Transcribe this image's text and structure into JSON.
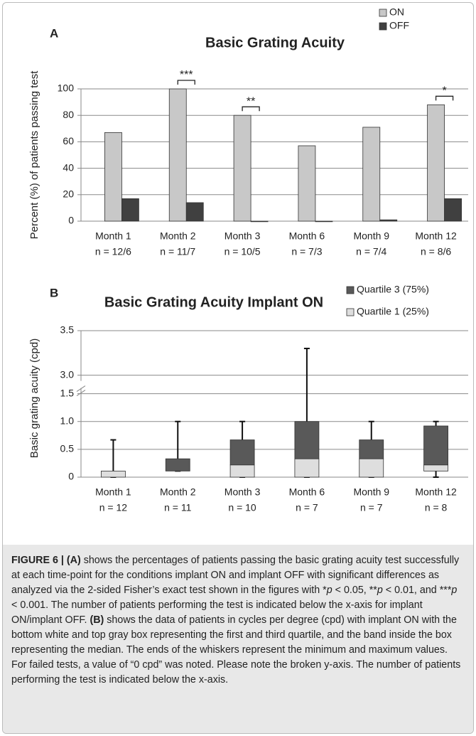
{
  "chart_data": [
    {
      "type": "bar",
      "panel": "A",
      "title": "Basic Grating Acuity",
      "ylabel": "Percent (%) of patients passing test",
      "categories": [
        "Month 1",
        "Month 2",
        "Month 3",
        "Month 6",
        "Month 9",
        "Month 12"
      ],
      "sample_sizes": [
        "n = 12/6",
        "n = 11/7",
        "n = 10/5",
        "n = 7/3",
        "n = 7/4",
        "n = 8/6"
      ],
      "series": [
        {
          "name": "ON",
          "color": "#c8c8c8",
          "values": [
            67,
            100,
            80,
            57,
            71,
            88
          ]
        },
        {
          "name": "OFF",
          "color": "#404040",
          "values": [
            17,
            14,
            0,
            0,
            1,
            17
          ]
        }
      ],
      "annotations": [
        {
          "category": "Month 2",
          "text": "***"
        },
        {
          "category": "Month 3",
          "text": "**"
        },
        {
          "category": "Month 12",
          "text": "*"
        }
      ],
      "ylim": [
        0,
        100
      ],
      "yticks": [
        0,
        20,
        40,
        60,
        80,
        100
      ],
      "grid": true,
      "legend": "top-right"
    },
    {
      "type": "box",
      "panel": "B",
      "title": "Basic Grating Acuity Implant ON",
      "ylabel": "Basic grating acuity (cpd)",
      "categories": [
        "Month 1",
        "Month 2",
        "Month 3",
        "Month 6",
        "Month 9",
        "Month 12"
      ],
      "sample_sizes": [
        "n = 12",
        "n = 11",
        "n = 10",
        "n = 7",
        "n = 7",
        "n = 8"
      ],
      "series": [
        {
          "name": "Quartile 3 (75%)",
          "color": "#595959"
        },
        {
          "name": "Quartile 1 (25%)",
          "color": "#dedede"
        }
      ],
      "min": [
        0,
        0.11,
        0,
        0,
        0,
        0
      ],
      "q1": [
        0,
        0.11,
        0,
        0,
        0,
        0.11
      ],
      "median": [
        0.11,
        0.11,
        0.22,
        0.33,
        0.33,
        0.22
      ],
      "q3": [
        0.11,
        0.33,
        0.67,
        1.0,
        0.67,
        0.92
      ],
      "max": [
        0.67,
        1.0,
        1.0,
        3.3,
        1.0,
        1.0
      ],
      "ylim": [
        0,
        3.5
      ],
      "y_break": [
        1.5,
        3.0
      ],
      "yticks": [
        0,
        0.5,
        {
          "value": 1,
          "label": "1.0"
        },
        1.5,
        {
          "value": 3,
          "label": "3.0"
        },
        3.5
      ],
      "grid": true,
      "legend": "top-right"
    }
  ],
  "caption": [
    {
      "text": "FIGURE 6 | (A)",
      "bold": true
    },
    {
      "text": " shows the percentages of patients passing the basic grating acuity test successfully at each time-point for the conditions implant ON and implant OFF with significant differences as analyzed via the 2-sided Fisher’s exact test shown in the figures with *"
    },
    {
      "text": "p",
      "italic": true
    },
    {
      "text": " < 0.05, **"
    },
    {
      "text": "p",
      "italic": true
    },
    {
      "text": " < 0.01, and ***"
    },
    {
      "text": "p",
      "italic": true
    },
    {
      "text": " < 0.001. The number of patients performing the test is indicated below the x-axis for implant ON/implant OFF. "
    },
    {
      "text": "(B)",
      "bold": true
    },
    {
      "text": " shows the data of patients in cycles per degree (cpd) with implant ON with the bottom white and top gray box representing the first and third quartile, and the band inside the box representing the median. The ends of the whiskers represent the minimum and maximum values. For failed tests, a value of “0 cpd” was noted. Please note the broken y-axis. The number of patients performing the test is indicated below the x-axis."
    }
  ]
}
